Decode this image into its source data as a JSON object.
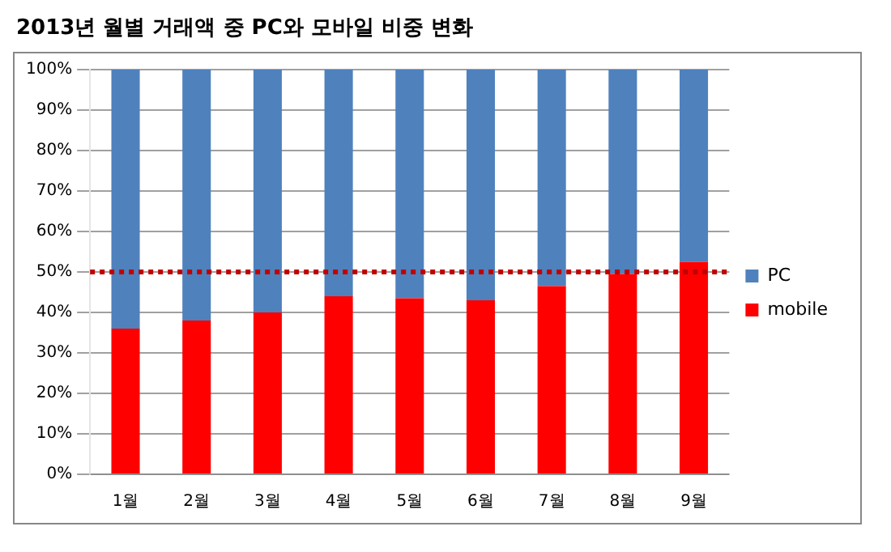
{
  "chart_data": {
    "type": "bar",
    "title": "2013년 월별 거래액 중 PC와 모바일 비중 변화",
    "categories": [
      "1월",
      "2월",
      "3월",
      "4월",
      "5월",
      "6월",
      "7월",
      "8월",
      "9월"
    ],
    "stacked": true,
    "series": [
      {
        "name": "mobile",
        "color": "#ff0000",
        "values": [
          36,
          38,
          40,
          44,
          43.5,
          43,
          46.5,
          49.5,
          52.5
        ]
      },
      {
        "name": "PC",
        "color": "#4f81bd",
        "values": [
          64,
          62,
          60,
          56,
          56.5,
          57,
          53.5,
          50.5,
          47.5
        ]
      }
    ],
    "ylim": [
      0,
      100
    ],
    "yticks": [
      {
        "value": 0,
        "label": "0%"
      },
      {
        "value": 10,
        "label": "10%"
      },
      {
        "value": 20,
        "label": "20%"
      },
      {
        "value": 30,
        "label": "30%"
      },
      {
        "value": 40,
        "label": "40%"
      },
      {
        "value": 50,
        "label": "50%"
      },
      {
        "value": 60,
        "label": "60%"
      },
      {
        "value": 70,
        "label": "70%"
      },
      {
        "value": 80,
        "label": "80%"
      },
      {
        "value": 90,
        "label": "90%"
      },
      {
        "value": 100,
        "label": "100%"
      }
    ],
    "ref_lines": [
      {
        "axis": "y",
        "value": 50,
        "color": "#c00000",
        "line_style": "dotted"
      }
    ],
    "grid": "y",
    "legend": "right"
  }
}
